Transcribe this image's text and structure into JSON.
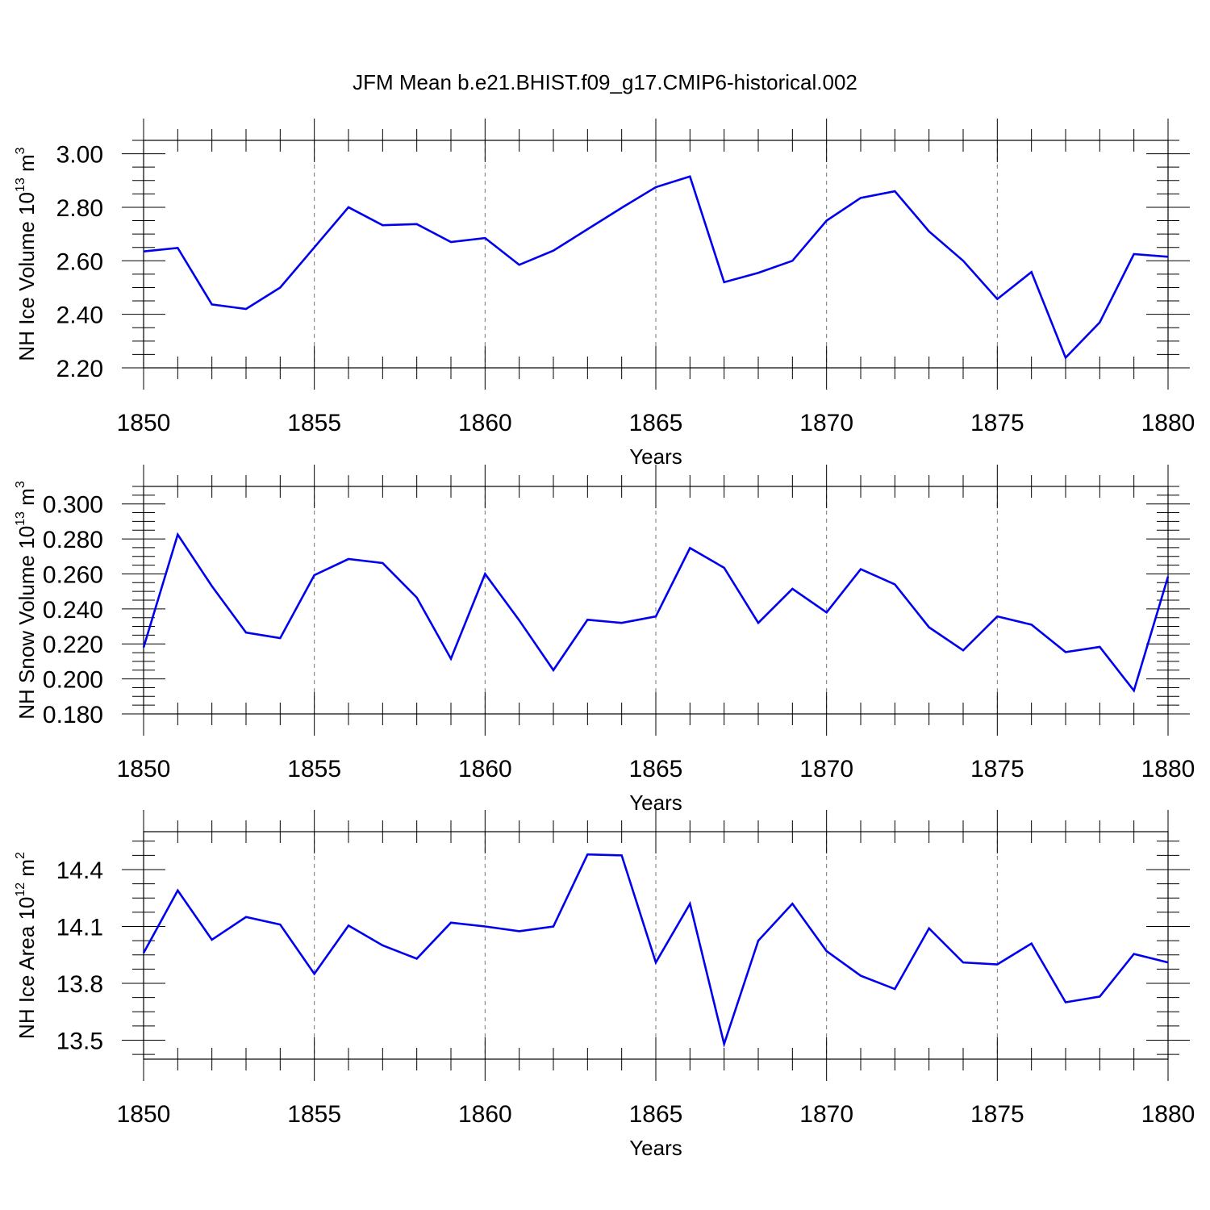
{
  "figure": {
    "title": "JFM Mean b.e21.BHIST.f09_g17.CMIP6-historical.002"
  },
  "chart_data": [
    {
      "type": "line",
      "title": "JFM Mean b.e21.BHIST.f09_g17.CMIP6-historical.002",
      "xlabel": "Years",
      "ylabel": "NH Ice Volume 10",
      "ylabel_sup1": "13",
      "ylabel_unit": " m",
      "ylabel_sup2": "3",
      "xlim": [
        1850,
        1880
      ],
      "ylim": [
        2.2,
        3.05
      ],
      "grid": "vertical dashed at 1855, 1860, 1865, 1870, 1875",
      "x_ticks": [
        "1850",
        "1855",
        "1860",
        "1865",
        "1870",
        "1875",
        "1880"
      ],
      "y_ticks": [
        "2.20",
        "2.40",
        "2.60",
        "2.80",
        "3.00"
      ],
      "series": [
        {
          "name": "NH Ice Volume",
          "color": "#0000ee",
          "x": [
            1850,
            1851,
            1852,
            1853,
            1854,
            1855,
            1856,
            1857,
            1858,
            1859,
            1860,
            1861,
            1862,
            1863,
            1864,
            1865,
            1866,
            1867,
            1868,
            1869,
            1870,
            1871,
            1872,
            1873,
            1874,
            1875,
            1876,
            1877,
            1878,
            1879,
            1880
          ],
          "values": [
            2.635,
            2.648,
            2.437,
            2.42,
            2.5,
            2.65,
            2.8,
            2.733,
            2.737,
            2.67,
            2.685,
            2.585,
            2.638,
            2.718,
            2.798,
            2.875,
            2.915,
            2.52,
            2.555,
            2.6,
            2.75,
            2.835,
            2.86,
            2.71,
            2.6,
            2.457,
            2.558,
            2.238,
            2.37,
            2.625,
            2.615
          ]
        }
      ]
    },
    {
      "type": "line",
      "title": "",
      "xlabel": "Years",
      "ylabel": "NH Snow Volume 10",
      "ylabel_sup1": "13",
      "ylabel_unit": " m",
      "ylabel_sup2": "3",
      "xlim": [
        1850,
        1880
      ],
      "ylim": [
        0.18,
        0.31
      ],
      "grid": "vertical dashed at 1855, 1860, 1865, 1870, 1875",
      "x_ticks": [
        "1850",
        "1855",
        "1860",
        "1865",
        "1870",
        "1875",
        "1880"
      ],
      "y_ticks": [
        "0.180",
        "0.200",
        "0.220",
        "0.240",
        "0.260",
        "0.280",
        "0.300"
      ],
      "series": [
        {
          "name": "NH Snow Volume",
          "color": "#0000ee",
          "x": [
            1850,
            1851,
            1852,
            1853,
            1854,
            1855,
            1856,
            1857,
            1858,
            1859,
            1860,
            1861,
            1862,
            1863,
            1864,
            1865,
            1866,
            1867,
            1868,
            1869,
            1870,
            1871,
            1872,
            1873,
            1874,
            1875,
            1876,
            1877,
            1878,
            1879,
            1880
          ],
          "values": [
            0.218,
            0.2825,
            0.253,
            0.2265,
            0.2233,
            0.2593,
            0.2685,
            0.2662,
            0.2465,
            0.2115,
            0.26,
            0.2335,
            0.205,
            0.2338,
            0.232,
            0.2357,
            0.2748,
            0.2635,
            0.232,
            0.2515,
            0.238,
            0.2627,
            0.254,
            0.2295,
            0.2163,
            0.2357,
            0.231,
            0.2153,
            0.2183,
            0.1933,
            0.2585
          ]
        }
      ]
    },
    {
      "type": "line",
      "title": "",
      "xlabel": "Years",
      "ylabel": "NH Ice Area 10",
      "ylabel_sup1": "12",
      "ylabel_unit": " m",
      "ylabel_sup2": "2",
      "xlim": [
        1850,
        1880
      ],
      "ylim": [
        13.4,
        14.6
      ],
      "grid": "vertical dashed at 1855, 1860, 1865, 1870, 1875",
      "x_ticks": [
        "1850",
        "1855",
        "1860",
        "1865",
        "1870",
        "1875",
        "1880"
      ],
      "y_ticks": [
        "13.5",
        "13.8",
        "14.1",
        "14.4"
      ],
      "series": [
        {
          "name": "NH Ice Area",
          "color": "#0000ee",
          "x": [
            1850,
            1851,
            1852,
            1853,
            1854,
            1855,
            1856,
            1857,
            1858,
            1859,
            1860,
            1861,
            1862,
            1863,
            1864,
            1865,
            1866,
            1867,
            1868,
            1869,
            1870,
            1871,
            1872,
            1873,
            1874,
            1875,
            1876,
            1877,
            1878,
            1879,
            1880
          ],
          "values": [
            13.96,
            14.29,
            14.03,
            14.15,
            14.11,
            13.85,
            14.105,
            14.0,
            13.93,
            14.12,
            14.1,
            14.075,
            14.1,
            14.48,
            14.475,
            13.91,
            14.22,
            13.48,
            14.025,
            14.22,
            13.97,
            13.84,
            13.77,
            14.09,
            13.91,
            13.9,
            14.01,
            13.7,
            13.73,
            13.955,
            13.91
          ]
        }
      ]
    }
  ]
}
